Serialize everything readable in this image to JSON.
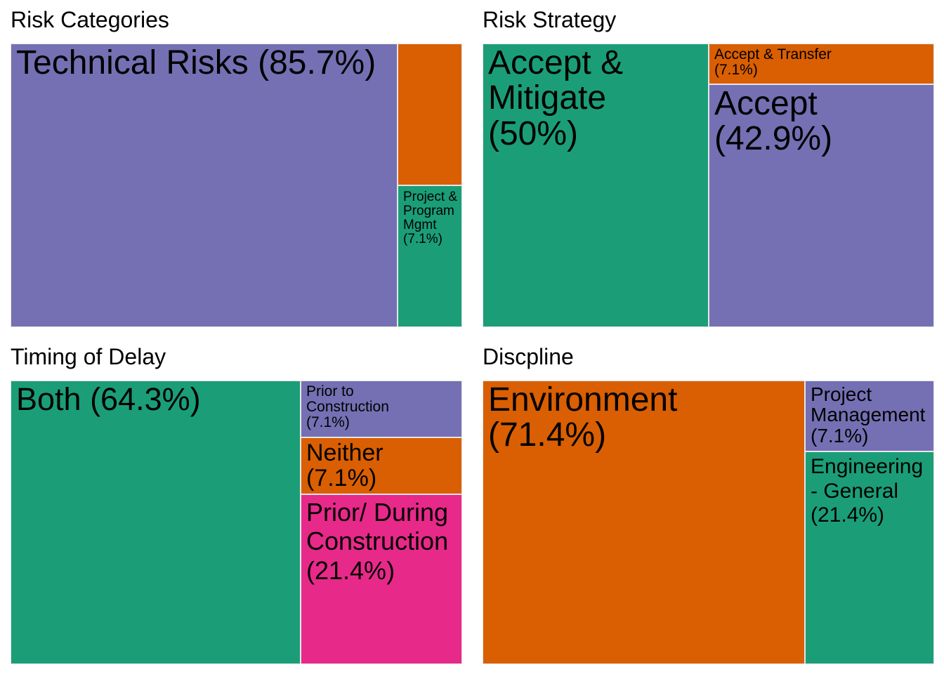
{
  "colors": {
    "purple": "#7570b3",
    "orange": "#d95f02",
    "teal": "#1b9e77",
    "magenta": "#e7298a"
  },
  "chart_data": [
    {
      "type": "treemap",
      "title": "Risk Categories",
      "tiles": [
        {
          "label": "Technical Risks (85.7%)",
          "value": 85.7,
          "color": "#7570b3"
        },
        {
          "label": "",
          "value": 7.1,
          "color": "#d95f02"
        },
        {
          "label": "Project & Program Mgmt (7.1%)",
          "value": 7.1,
          "color": "#1b9e77"
        }
      ]
    },
    {
      "type": "treemap",
      "title": "Risk Strategy",
      "tiles": [
        {
          "label": "Accept & Mitigate (50%)",
          "value": 50,
          "color": "#1b9e77"
        },
        {
          "label": "Accept & Transfer (7.1%)",
          "value": 7.1,
          "color": "#d95f02"
        },
        {
          "label": "Accept (42.9%)",
          "value": 42.9,
          "color": "#7570b3"
        }
      ]
    },
    {
      "type": "treemap",
      "title": "Timing of Delay",
      "tiles": [
        {
          "label": "Both (64.3%)",
          "value": 64.3,
          "color": "#1b9e77"
        },
        {
          "label": "Prior to Construction (7.1%)",
          "value": 7.1,
          "color": "#7570b3"
        },
        {
          "label": "Neither (7.1%)",
          "value": 7.1,
          "color": "#d95f02"
        },
        {
          "label": "Prior/ During Construction (21.4%)",
          "value": 21.4,
          "color": "#e7298a"
        }
      ]
    },
    {
      "type": "treemap",
      "title": "Discpline",
      "tiles": [
        {
          "label": "Environment (71.4%)",
          "value": 71.4,
          "color": "#d95f02"
        },
        {
          "label": "Project Management (7.1%)",
          "value": 7.1,
          "color": "#7570b3"
        },
        {
          "label": "Engineering - General (21.4%)",
          "value": 21.4,
          "color": "#1b9e77"
        }
      ]
    }
  ]
}
